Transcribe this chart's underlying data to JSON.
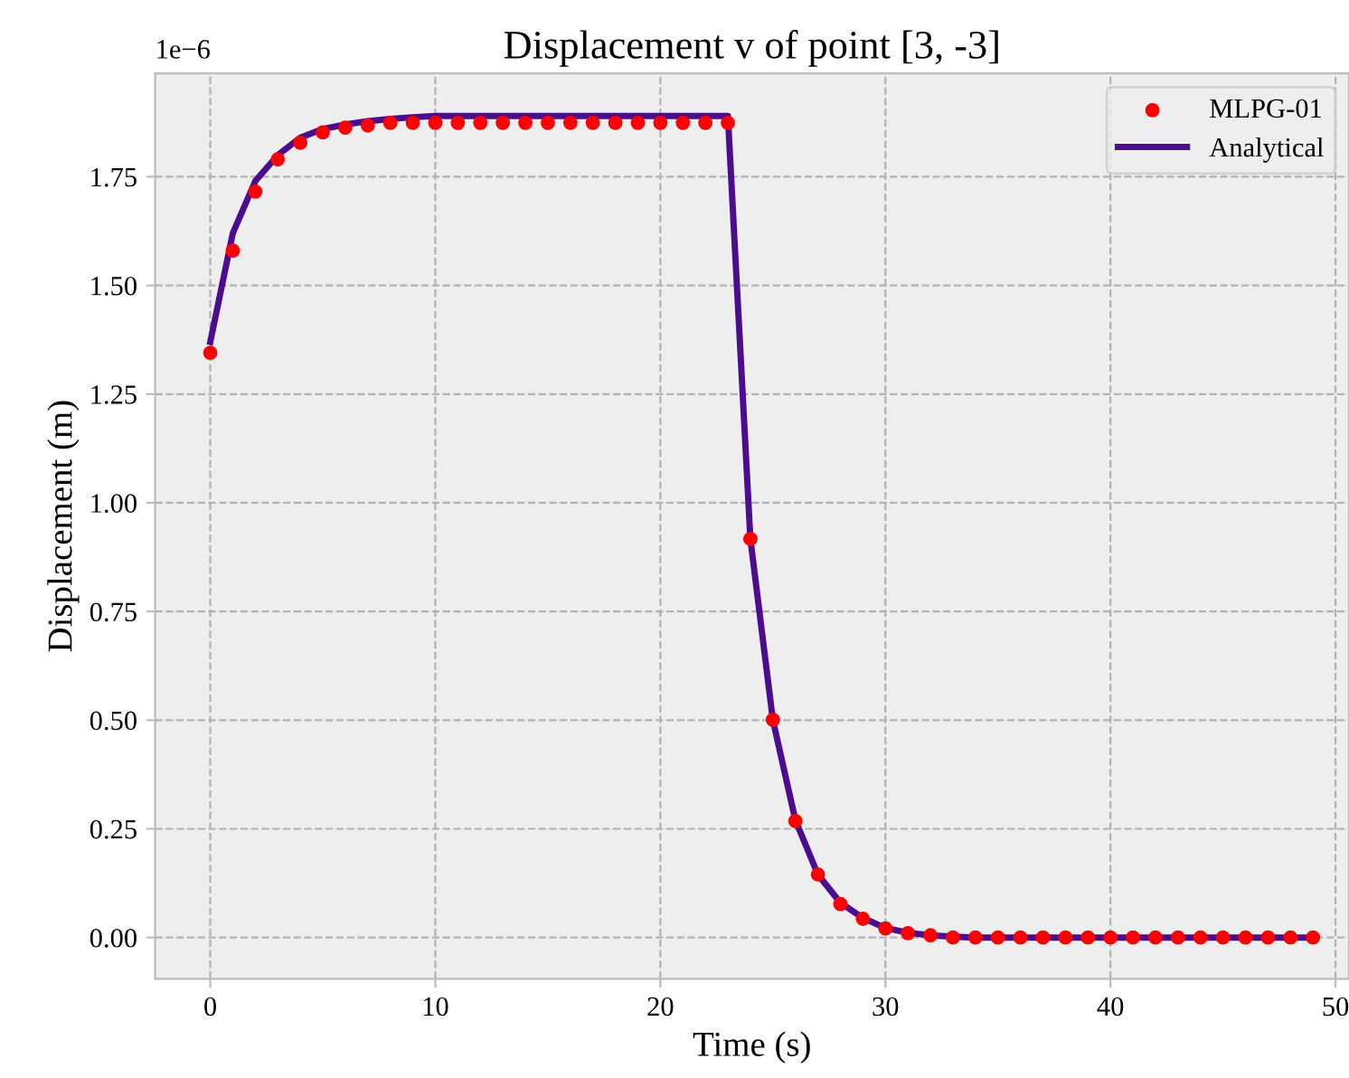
{
  "chart_data": {
    "type": "line",
    "title": "Displacement v of point [3, -3]",
    "xlabel": "Time (s)",
    "ylabel": "Displacement (m)",
    "annotations": [
      "1e−6"
    ],
    "series": [
      {
        "name": "MLPG-01",
        "type": "scatter",
        "color": "#ff0000",
        "marker": "circle",
        "x": [
          0,
          1,
          2,
          3,
          4,
          5,
          6,
          7,
          8,
          9,
          10,
          11,
          12,
          13,
          14,
          15,
          16,
          17,
          18,
          19,
          20,
          21,
          22,
          23,
          24,
          25,
          26,
          27,
          28,
          29,
          30,
          31,
          32,
          33,
          34,
          35,
          36,
          37,
          38,
          39,
          40,
          41,
          42,
          43,
          44,
          45,
          46,
          47,
          48,
          49
        ],
        "values": [
          1.345,
          1.58,
          1.716,
          1.79,
          1.828,
          1.852,
          1.863,
          1.868,
          1.874,
          1.874,
          1.874,
          1.874,
          1.874,
          1.874,
          1.874,
          1.874,
          1.874,
          1.874,
          1.874,
          1.874,
          1.874,
          1.874,
          1.874,
          1.874,
          0.917,
          0.501,
          0.268,
          0.145,
          0.077,
          0.043,
          0.021,
          0.01,
          0.005,
          0,
          0,
          0,
          0,
          0,
          0,
          0,
          0,
          0,
          0,
          0,
          0,
          0,
          0,
          0,
          0,
          0
        ]
      },
      {
        "name": "Analytical",
        "color": "#4b0c8f",
        "line_style": "solid",
        "x": [
          0,
          1,
          2,
          3,
          4,
          5,
          6,
          7,
          8,
          9,
          10,
          11,
          12,
          13,
          14,
          15,
          16,
          17,
          18,
          19,
          20,
          21,
          22,
          23,
          24,
          25,
          26,
          27,
          28,
          29,
          30,
          31,
          32,
          33,
          34,
          35,
          36,
          37,
          38,
          39,
          40,
          41,
          42,
          43,
          44,
          45,
          46,
          47,
          48,
          49
        ],
        "values": [
          1.37,
          1.62,
          1.74,
          1.8,
          1.84,
          1.86,
          1.87,
          1.878,
          1.883,
          1.887,
          1.89,
          1.89,
          1.89,
          1.89,
          1.89,
          1.89,
          1.89,
          1.89,
          1.89,
          1.89,
          1.89,
          1.89,
          1.89,
          1.89,
          0.917,
          0.5,
          0.27,
          0.145,
          0.08,
          0.045,
          0.022,
          0.011,
          0.005,
          0.002,
          0,
          0,
          0,
          0,
          0,
          0,
          0,
          0,
          0,
          0,
          0,
          0,
          0,
          0,
          0,
          0
        ]
      }
    ],
    "xlim": [
      -2.45,
      50.6
    ],
    "xticks": [
      0,
      10,
      20,
      30,
      40,
      50
    ],
    "ylim": [
      -0.095,
      1.988
    ],
    "yticks": [
      {
        "value": 0,
        "label": "0.00"
      },
      {
        "value": 0.25,
        "label": "0.25"
      },
      {
        "value": 0.5,
        "label": "0.50"
      },
      {
        "value": 0.75,
        "label": "0.75"
      },
      {
        "value": 1,
        "label": "1.00"
      },
      {
        "value": 1.25,
        "label": "1.25"
      },
      {
        "value": 1.5,
        "label": "1.50"
      },
      {
        "value": 1.75,
        "label": "1.75"
      }
    ],
    "grid": true,
    "legend": "top right"
  }
}
